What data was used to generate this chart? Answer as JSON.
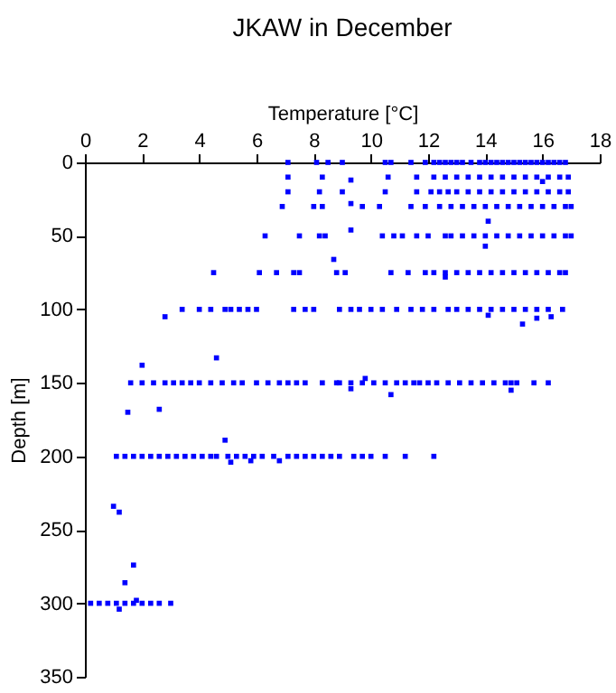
{
  "chart_data": {
    "type": "scatter",
    "title": "JKAW in December",
    "xlabel": "Temperature [°C]",
    "ylabel": "Depth [m]",
    "xlim": [
      0,
      18
    ],
    "xticks": [
      0,
      2,
      4,
      6,
      8,
      10,
      12,
      14,
      16,
      18
    ],
    "ylim": [
      350,
      0
    ],
    "yticks": [
      0,
      50,
      100,
      150,
      200,
      250,
      300,
      350
    ],
    "grid": false,
    "legend": false,
    "marker": "square",
    "series": [
      {
        "color": "#0000ff",
        "x": [
          7.1,
          8.1,
          8.5,
          9.0,
          10.5,
          10.7,
          11.4,
          11.9,
          12.2,
          12.4,
          12.6,
          12.8,
          13.0,
          13.2,
          13.5,
          13.8,
          14.0,
          14.2,
          14.4,
          14.6,
          14.8,
          15.0,
          15.2,
          15.4,
          15.6,
          15.8,
          16.0,
          16.2,
          16.4,
          16.6,
          16.8
        ],
        "values": [
          0,
          0,
          0,
          0,
          0,
          0,
          0,
          0,
          0,
          0,
          0,
          0,
          0,
          0,
          0,
          0,
          0,
          0,
          0,
          0,
          0,
          0,
          0,
          0,
          0,
          0,
          0,
          0,
          0,
          0,
          0
        ]
      },
      {
        "color": "#0000ff",
        "x": [
          7.1,
          8.3,
          10.6,
          11.6,
          12.2,
          12.6,
          13.0,
          13.4,
          13.8,
          14.2,
          14.6,
          15.0,
          15.4,
          15.8,
          16.2,
          16.6,
          16.9,
          9.3,
          16.0
        ],
        "values": [
          10,
          10,
          10,
          10,
          10,
          10,
          10,
          10,
          10,
          10,
          10,
          10,
          10,
          10,
          10,
          10,
          10,
          12,
          13
        ]
      },
      {
        "color": "#0000ff",
        "x": [
          7.1,
          8.2,
          9.0,
          10.5,
          11.6,
          12.1,
          12.4,
          12.7,
          13.0,
          13.4,
          13.8,
          14.2,
          14.6,
          15.0,
          15.4,
          15.8,
          16.2,
          16.6,
          16.9
        ],
        "values": [
          20,
          20,
          20,
          20,
          20,
          20,
          20,
          20,
          20,
          20,
          20,
          20,
          20,
          20,
          20,
          20,
          20,
          20,
          20
        ]
      },
      {
        "color": "#0000ff",
        "x": [
          6.9,
          8.0,
          8.3,
          9.7,
          10.3,
          11.4,
          11.9,
          12.4,
          12.8,
          13.2,
          13.6,
          14.0,
          14.4,
          14.8,
          15.2,
          15.6,
          16.0,
          16.4,
          16.8,
          17.0,
          9.3,
          14.1
        ],
        "values": [
          30,
          30,
          30,
          30,
          30,
          30,
          30,
          30,
          30,
          30,
          30,
          30,
          30,
          30,
          30,
          30,
          30,
          30,
          30,
          30,
          28,
          40
        ]
      },
      {
        "color": "#0000ff",
        "x": [
          6.3,
          7.5,
          8.2,
          8.4,
          10.4,
          10.8,
          11.1,
          11.6,
          12.0,
          12.6,
          12.8,
          13.2,
          13.6,
          14.0,
          14.4,
          14.8,
          15.2,
          15.6,
          16.0,
          16.4,
          16.8,
          17.0,
          9.3,
          14.0,
          8.7
        ],
        "values": [
          50,
          50,
          50,
          50,
          50,
          50,
          50,
          50,
          50,
          50,
          50,
          50,
          50,
          50,
          50,
          50,
          50,
          50,
          50,
          50,
          50,
          50,
          46,
          57,
          66
        ]
      },
      {
        "color": "#0000ff",
        "x": [
          4.5,
          6.1,
          6.7,
          7.3,
          7.5,
          8.8,
          9.1,
          10.7,
          11.3,
          11.9,
          12.2,
          12.6,
          13.0,
          13.4,
          13.8,
          14.2,
          14.6,
          15.0,
          15.4,
          15.8,
          16.2,
          16.6,
          16.8,
          12.6
        ],
        "values": [
          75,
          75,
          75,
          75,
          75,
          75,
          75,
          75,
          75,
          75,
          75,
          75,
          75,
          75,
          75,
          75,
          75,
          75,
          75,
          75,
          75,
          75,
          75,
          78
        ]
      },
      {
        "color": "#0000ff",
        "x": [
          3.4,
          4.0,
          4.4,
          4.9,
          5.1,
          5.4,
          5.7,
          6.0,
          7.3,
          7.7,
          8.0,
          8.9,
          9.3,
          9.6,
          10.0,
          10.4,
          10.9,
          11.4,
          11.8,
          12.2,
          12.7,
          13.0,
          13.4,
          13.8,
          14.2,
          14.6,
          15.0,
          15.4,
          15.8,
          16.2,
          16.7,
          2.8,
          14.1,
          15.3,
          15.8,
          16.3,
          4.6,
          2.0
        ],
        "values": [
          100,
          100,
          100,
          100,
          100,
          100,
          100,
          100,
          100,
          100,
          100,
          100,
          100,
          100,
          100,
          100,
          100,
          100,
          100,
          100,
          100,
          100,
          100,
          100,
          100,
          100,
          100,
          100,
          100,
          100,
          100,
          105,
          104,
          110,
          106,
          105,
          133,
          138
        ]
      },
      {
        "color": "#0000ff",
        "x": [
          1.6,
          2.0,
          2.4,
          2.8,
          3.1,
          3.4,
          3.7,
          4.0,
          4.4,
          4.8,
          5.2,
          5.5,
          6.0,
          6.4,
          6.8,
          7.1,
          7.4,
          7.7,
          8.3,
          8.8,
          8.9,
          9.3,
          9.7,
          10.1,
          10.5,
          10.9,
          11.2,
          11.5,
          11.7,
          12.0,
          12.3,
          12.7,
          13.1,
          13.5,
          13.9,
          14.3,
          14.7,
          14.9,
          15.1,
          15.7,
          16.2,
          9.3,
          9.8,
          10.7,
          14.9,
          1.5,
          2.6
        ],
        "values": [
          150,
          150,
          150,
          150,
          150,
          150,
          150,
          150,
          150,
          150,
          150,
          150,
          150,
          150,
          150,
          150,
          150,
          150,
          150,
          150,
          150,
          150,
          150,
          150,
          150,
          150,
          150,
          150,
          150,
          150,
          150,
          150,
          150,
          150,
          150,
          150,
          150,
          150,
          150,
          150,
          150,
          154,
          147,
          158,
          155,
          170,
          168
        ]
      },
      {
        "color": "#0000ff",
        "x": [
          1.1,
          1.4,
          1.7,
          2.0,
          2.3,
          2.6,
          2.9,
          3.2,
          3.5,
          3.8,
          4.1,
          4.4,
          4.6,
          5.0,
          5.3,
          5.6,
          5.9,
          6.2,
          6.6,
          7.1,
          7.4,
          7.7,
          8.0,
          8.3,
          8.6,
          8.9,
          9.4,
          9.7,
          10.0,
          10.5,
          11.2,
          12.2,
          5.8,
          6.8,
          4.9,
          5.1
        ],
        "values": [
          200,
          200,
          200,
          200,
          200,
          200,
          200,
          200,
          200,
          200,
          200,
          200,
          200,
          200,
          200,
          200,
          200,
          200,
          200,
          200,
          200,
          200,
          200,
          200,
          200,
          200,
          200,
          200,
          200,
          200,
          200,
          200,
          203,
          203,
          189,
          204
        ]
      },
      {
        "color": "#0000ff",
        "x": [
          1.0,
          1.2,
          1.7,
          1.4,
          1.8,
          1.2,
          0.2,
          0.5,
          0.8,
          1.1,
          1.4,
          1.7,
          2.0,
          2.3,
          2.6,
          3.0
        ],
        "values": [
          234,
          238,
          274,
          286,
          298,
          304,
          300,
          300,
          300,
          300,
          300,
          300,
          300,
          300,
          300,
          300
        ]
      }
    ]
  }
}
